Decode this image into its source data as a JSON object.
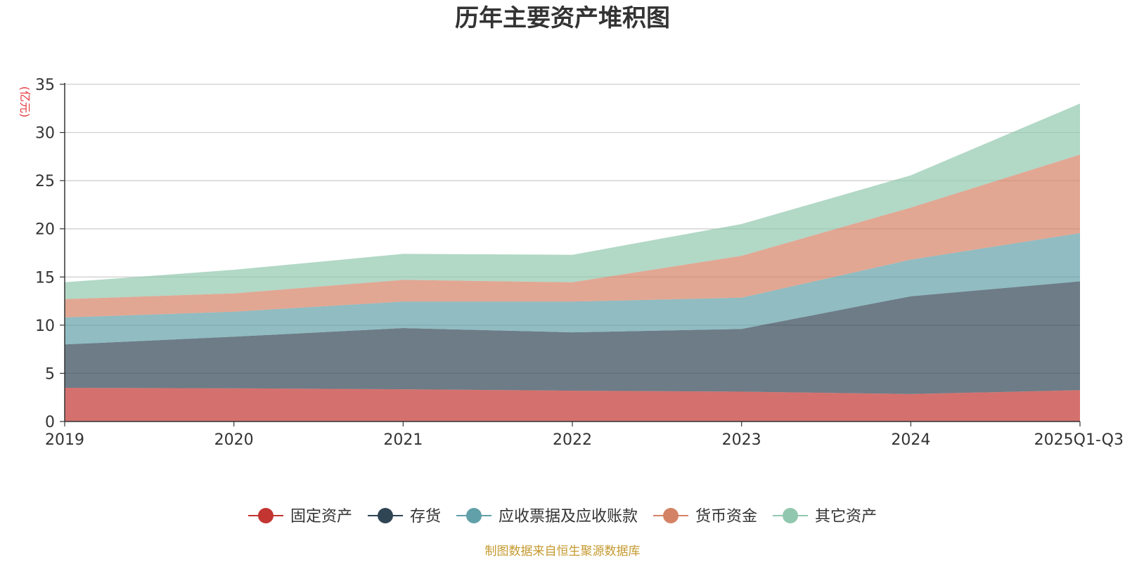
{
  "chart_data": {
    "type": "area",
    "stacked": true,
    "title": "历年主要资产堆积图",
    "unit_label": "(亿元)",
    "categories": [
      "2019",
      "2020",
      "2021",
      "2022",
      "2023",
      "2024",
      "2025Q1-Q3"
    ],
    "ylim": [
      0,
      35
    ],
    "yticks": [
      0,
      5,
      10,
      15,
      20,
      25,
      30,
      35
    ],
    "grid": true,
    "legend_position": "bottom",
    "series": [
      {
        "name": "固定资产",
        "color": "#c23531",
        "values": [
          3.5,
          3.45,
          3.35,
          3.2,
          3.1,
          2.85,
          3.25
        ]
      },
      {
        "name": "存货",
        "color": "#2f4554",
        "values": [
          4.5,
          5.35,
          6.35,
          6.05,
          6.5,
          10.15,
          11.3
        ]
      },
      {
        "name": "应收票据及应收账款",
        "color": "#61a0a8",
        "values": [
          2.8,
          2.6,
          2.75,
          3.2,
          3.25,
          3.8,
          5.0
        ]
      },
      {
        "name": "货币资金",
        "color": "#d48265",
        "values": [
          1.9,
          1.9,
          2.25,
          2.0,
          4.35,
          5.4,
          8.15
        ]
      },
      {
        "name": "其它资产",
        "color": "#91c7ae",
        "values": [
          1.75,
          2.45,
          2.7,
          2.85,
          3.3,
          3.35,
          5.3
        ]
      }
    ]
  },
  "footer": {
    "source": "制图数据来自恒生聚源数据库"
  }
}
